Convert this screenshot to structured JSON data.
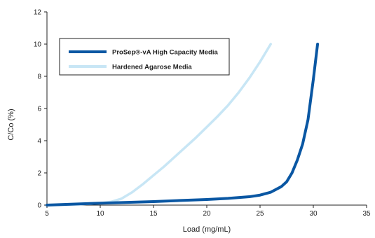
{
  "chart_data": {
    "type": "line",
    "title": "",
    "xlabel": "Load (mg/mL)",
    "ylabel": "C/Co (%)",
    "xlim": [
      5,
      35
    ],
    "ylim": [
      0,
      12
    ],
    "xticks": [
      5,
      10,
      15,
      20,
      25,
      30,
      35
    ],
    "yticks": [
      0,
      2,
      4,
      6,
      8,
      10,
      12
    ],
    "grid": false,
    "legend_position": "top-left",
    "series": [
      {
        "name": "ProSep®-vA High Capacity Media",
        "color": "#0a57a3",
        "x": [
          5,
          7,
          10,
          12,
          15,
          18,
          20,
          22,
          24,
          25,
          26,
          27,
          27.5,
          28,
          28.5,
          29,
          29.5,
          30,
          30.2,
          30.4
        ],
        "y": [
          0.0,
          0.05,
          0.12,
          0.16,
          0.22,
          0.3,
          0.35,
          0.42,
          0.52,
          0.62,
          0.8,
          1.15,
          1.45,
          2.0,
          2.8,
          3.8,
          5.3,
          7.8,
          8.9,
          10.0
        ]
      },
      {
        "name": "Hardened Agarose Media",
        "color": "#c8e6f5",
        "x": [
          5,
          8,
          10,
          11,
          12,
          13,
          14,
          15,
          16,
          17,
          18,
          19,
          20,
          21,
          22,
          23,
          24,
          25,
          26
        ],
        "y": [
          0.0,
          0.05,
          0.12,
          0.2,
          0.4,
          0.8,
          1.3,
          1.85,
          2.4,
          3.0,
          3.6,
          4.2,
          4.85,
          5.5,
          6.2,
          7.0,
          7.9,
          8.9,
          10.0
        ]
      }
    ]
  }
}
